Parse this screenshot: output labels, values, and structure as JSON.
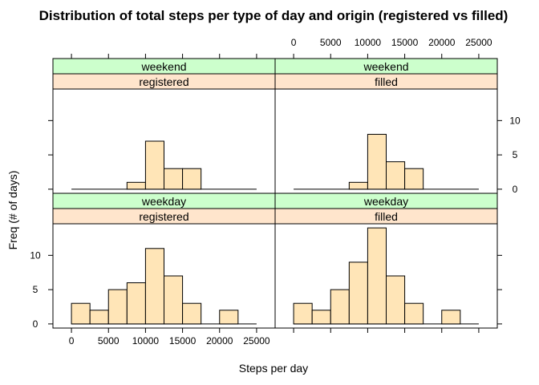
{
  "chart_data": {
    "type": "bar",
    "title": "Distribution of total steps per type of day and origin (registered vs filled)",
    "xlabel": "Steps per day",
    "ylabel": "Freq (# of days)",
    "xlim": [
      -2500,
      27500
    ],
    "ylim": [
      -0.6,
      14.6
    ],
    "x_ticks": [
      "0",
      "5000",
      "10000",
      "15000",
      "20000",
      "25000"
    ],
    "y_ticks": [
      "0",
      "5",
      "10"
    ],
    "bin_edges": [
      0,
      2500,
      5000,
      7500,
      10000,
      12500,
      15000,
      17500,
      20000,
      22500,
      25000
    ],
    "panels": [
      {
        "strips": [
          "weekend",
          "registered"
        ],
        "counts": [
          0,
          0,
          0,
          1,
          7,
          3,
          3,
          0,
          0,
          0
        ]
      },
      {
        "strips": [
          "weekend",
          "filled"
        ],
        "counts": [
          0,
          0,
          0,
          1,
          8,
          4,
          3,
          0,
          0,
          0
        ]
      },
      {
        "strips": [
          "weekday",
          "registered"
        ],
        "counts": [
          3,
          2,
          5,
          6,
          11,
          7,
          3,
          0,
          2,
          0
        ]
      },
      {
        "strips": [
          "weekday",
          "filled"
        ],
        "counts": [
          3,
          2,
          5,
          9,
          14,
          7,
          3,
          0,
          2,
          0
        ]
      }
    ],
    "colors": {
      "bar_fill": "#FFE5B7",
      "outer_strip": "#CCFFCC",
      "inner_strip": "#FFE5CC",
      "line": "#000000"
    }
  }
}
